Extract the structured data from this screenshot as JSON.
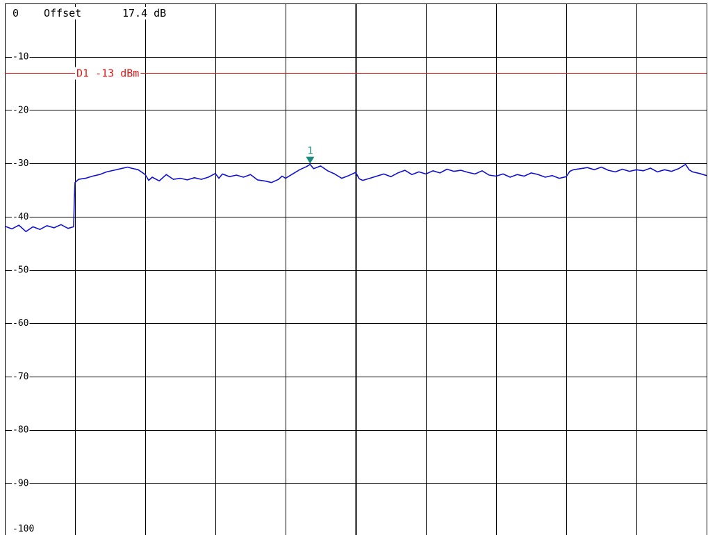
{
  "header": {
    "ref_level": "0",
    "offset_label": "Offset",
    "offset_value": "17.4 dB"
  },
  "chart_data": {
    "type": "line",
    "title": "",
    "xlabel": "",
    "ylabel": "",
    "xlim": [
      0,
      10
    ],
    "ylim": [
      -100,
      0
    ],
    "x_divisions": 10,
    "y_divisions": 10,
    "grid": true,
    "y_tick_labels": [
      "-10",
      "-20",
      "-30",
      "-40",
      "-50",
      "-60",
      "-70",
      "-80",
      "-90",
      "-100"
    ],
    "reference_line": {
      "label": "D1 -13 dBm",
      "value": -13,
      "color": "#e01818"
    },
    "marker": {
      "label": "1",
      "x": 4.35,
      "y": -30.2,
      "color": "#1a8a80"
    },
    "series": [
      {
        "color": "#1010d0",
        "points": [
          [
            0.0,
            -41.8
          ],
          [
            0.1,
            -42.3
          ],
          [
            0.2,
            -41.6
          ],
          [
            0.3,
            -42.8
          ],
          [
            0.4,
            -41.9
          ],
          [
            0.5,
            -42.4
          ],
          [
            0.6,
            -41.7
          ],
          [
            0.7,
            -42.1
          ],
          [
            0.8,
            -41.5
          ],
          [
            0.9,
            -42.2
          ],
          [
            0.98,
            -41.9
          ],
          [
            0.99,
            -36.5
          ],
          [
            1.0,
            -33.6
          ],
          [
            1.05,
            -33.0
          ],
          [
            1.15,
            -32.8
          ],
          [
            1.25,
            -32.4
          ],
          [
            1.35,
            -32.1
          ],
          [
            1.45,
            -31.6
          ],
          [
            1.55,
            -31.3
          ],
          [
            1.65,
            -31.0
          ],
          [
            1.75,
            -30.7
          ],
          [
            1.8,
            -30.9
          ],
          [
            1.9,
            -31.2
          ],
          [
            2.0,
            -32.1
          ],
          [
            2.05,
            -33.2
          ],
          [
            2.1,
            -32.6
          ],
          [
            2.2,
            -33.3
          ],
          [
            2.3,
            -32.1
          ],
          [
            2.4,
            -33.0
          ],
          [
            2.5,
            -32.8
          ],
          [
            2.6,
            -33.1
          ],
          [
            2.7,
            -32.7
          ],
          [
            2.8,
            -33.0
          ],
          [
            2.9,
            -32.6
          ],
          [
            3.0,
            -31.9
          ],
          [
            3.05,
            -32.8
          ],
          [
            3.1,
            -32.0
          ],
          [
            3.2,
            -32.5
          ],
          [
            3.3,
            -32.2
          ],
          [
            3.4,
            -32.6
          ],
          [
            3.5,
            -32.1
          ],
          [
            3.6,
            -33.1
          ],
          [
            3.7,
            -33.3
          ],
          [
            3.8,
            -33.6
          ],
          [
            3.9,
            -33.0
          ],
          [
            3.95,
            -32.4
          ],
          [
            4.0,
            -32.8
          ],
          [
            4.1,
            -32.0
          ],
          [
            4.2,
            -31.2
          ],
          [
            4.3,
            -30.6
          ],
          [
            4.35,
            -30.2
          ],
          [
            4.4,
            -31.0
          ],
          [
            4.5,
            -30.5
          ],
          [
            4.6,
            -31.4
          ],
          [
            4.7,
            -32.0
          ],
          [
            4.8,
            -32.8
          ],
          [
            4.9,
            -32.3
          ],
          [
            5.0,
            -31.7
          ],
          [
            5.05,
            -32.9
          ],
          [
            5.1,
            -33.2
          ],
          [
            5.2,
            -32.8
          ],
          [
            5.3,
            -32.4
          ],
          [
            5.4,
            -32.0
          ],
          [
            5.5,
            -32.5
          ],
          [
            5.6,
            -31.8
          ],
          [
            5.7,
            -31.3
          ],
          [
            5.8,
            -32.1
          ],
          [
            5.9,
            -31.6
          ],
          [
            6.0,
            -32.0
          ],
          [
            6.1,
            -31.4
          ],
          [
            6.2,
            -31.8
          ],
          [
            6.3,
            -31.1
          ],
          [
            6.4,
            -31.5
          ],
          [
            6.5,
            -31.3
          ],
          [
            6.6,
            -31.7
          ],
          [
            6.7,
            -32.0
          ],
          [
            6.8,
            -31.4
          ],
          [
            6.9,
            -32.2
          ],
          [
            7.0,
            -32.4
          ],
          [
            7.1,
            -32.0
          ],
          [
            7.2,
            -32.6
          ],
          [
            7.3,
            -32.1
          ],
          [
            7.4,
            -32.4
          ],
          [
            7.5,
            -31.8
          ],
          [
            7.6,
            -32.1
          ],
          [
            7.7,
            -32.6
          ],
          [
            7.8,
            -32.3
          ],
          [
            7.9,
            -32.8
          ],
          [
            8.0,
            -32.5
          ],
          [
            8.05,
            -31.5
          ],
          [
            8.1,
            -31.2
          ],
          [
            8.2,
            -31.0
          ],
          [
            8.3,
            -30.8
          ],
          [
            8.4,
            -31.2
          ],
          [
            8.5,
            -30.7
          ],
          [
            8.6,
            -31.3
          ],
          [
            8.7,
            -31.6
          ],
          [
            8.8,
            -31.1
          ],
          [
            8.9,
            -31.5
          ],
          [
            9.0,
            -31.2
          ],
          [
            9.1,
            -31.4
          ],
          [
            9.2,
            -30.9
          ],
          [
            9.3,
            -31.6
          ],
          [
            9.4,
            -31.2
          ],
          [
            9.5,
            -31.5
          ],
          [
            9.6,
            -31.0
          ],
          [
            9.7,
            -30.2
          ],
          [
            9.75,
            -31.2
          ],
          [
            9.8,
            -31.6
          ],
          [
            9.9,
            -31.9
          ],
          [
            10.0,
            -32.3
          ]
        ]
      }
    ]
  }
}
